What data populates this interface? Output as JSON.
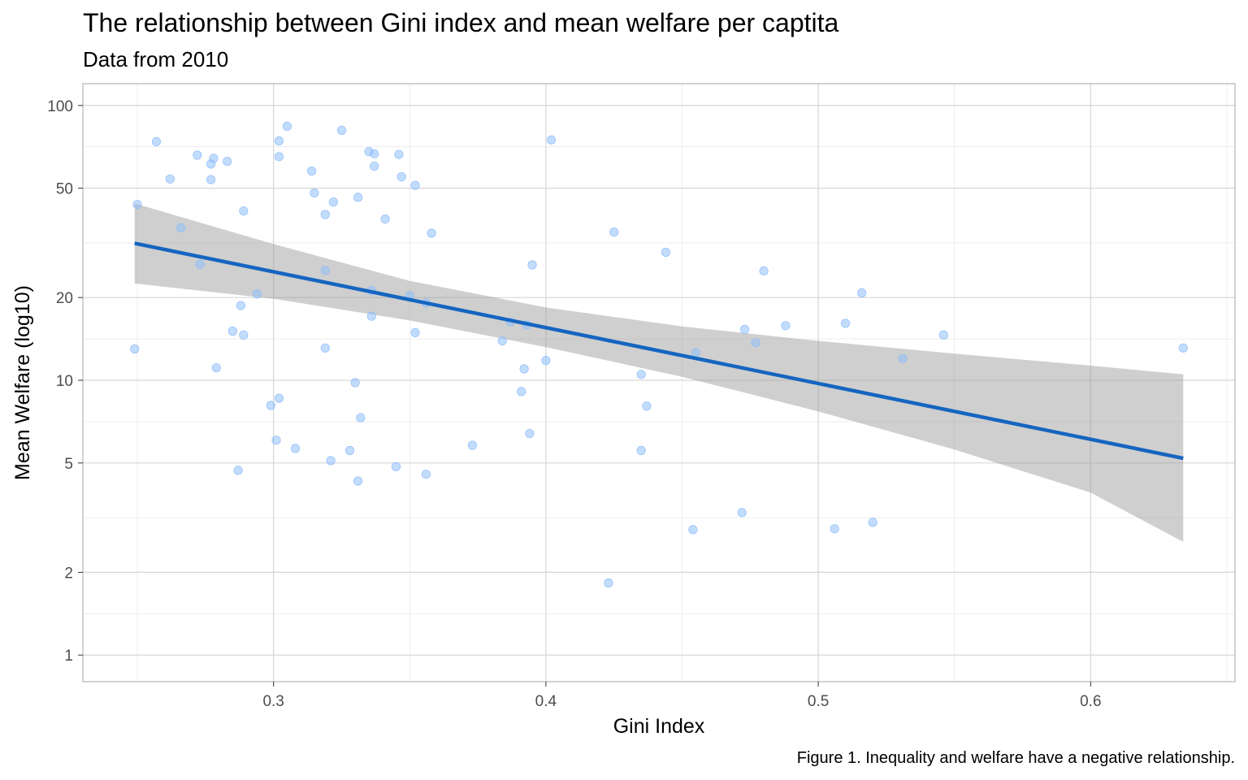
{
  "chart_data": {
    "type": "scatter",
    "title": "The relationship between Gini index and mean welfare per captita",
    "subtitle": "Data from 2010",
    "caption": "Figure 1. Inequality and welfare have a negative relationship.",
    "xlabel": "Gini Index",
    "ylabel": "Mean Welfare (log10)",
    "y_scale": "log10",
    "xlim": [
      0.23,
      0.653
    ],
    "ylim": [
      0.8,
      120
    ],
    "x_ticks": [
      0.3,
      0.4,
      0.5,
      0.6
    ],
    "x_tick_labels": [
      "0.3",
      "0.4",
      "0.5",
      "0.6"
    ],
    "y_ticks": [
      1,
      2,
      5,
      10,
      20,
      50,
      100
    ],
    "y_tick_labels": [
      "1",
      "2",
      "5",
      "10",
      "20",
      "50",
      "100"
    ],
    "colors": {
      "points": "#90bff9",
      "fit_line": "#1565c0",
      "ribbon": "#999999",
      "grid": "#d6d6d6",
      "panel_border": "#b3b3b3"
    },
    "points": [
      {
        "x": 0.249,
        "y": 13.0
      },
      {
        "x": 0.25,
        "y": 43.6
      },
      {
        "x": 0.257,
        "y": 73.8
      },
      {
        "x": 0.262,
        "y": 54.0
      },
      {
        "x": 0.266,
        "y": 35.9
      },
      {
        "x": 0.272,
        "y": 65.9
      },
      {
        "x": 0.273,
        "y": 26.4
      },
      {
        "x": 0.277,
        "y": 61.2
      },
      {
        "x": 0.277,
        "y": 53.7
      },
      {
        "x": 0.278,
        "y": 64.2
      },
      {
        "x": 0.279,
        "y": 11.1
      },
      {
        "x": 0.283,
        "y": 62.6
      },
      {
        "x": 0.285,
        "y": 15.1
      },
      {
        "x": 0.287,
        "y": 4.7
      },
      {
        "x": 0.288,
        "y": 18.7
      },
      {
        "x": 0.289,
        "y": 14.6
      },
      {
        "x": 0.289,
        "y": 41.3
      },
      {
        "x": 0.294,
        "y": 20.6
      },
      {
        "x": 0.299,
        "y": 8.1
      },
      {
        "x": 0.301,
        "y": 6.05
      },
      {
        "x": 0.302,
        "y": 8.6
      },
      {
        "x": 0.302,
        "y": 65.1
      },
      {
        "x": 0.302,
        "y": 74.3
      },
      {
        "x": 0.305,
        "y": 84.0
      },
      {
        "x": 0.308,
        "y": 5.65
      },
      {
        "x": 0.314,
        "y": 57.7
      },
      {
        "x": 0.315,
        "y": 48.0
      },
      {
        "x": 0.319,
        "y": 40.1
      },
      {
        "x": 0.319,
        "y": 25.1
      },
      {
        "x": 0.319,
        "y": 13.1
      },
      {
        "x": 0.321,
        "y": 5.1
      },
      {
        "x": 0.322,
        "y": 44.5
      },
      {
        "x": 0.325,
        "y": 81.2
      },
      {
        "x": 0.328,
        "y": 5.55
      },
      {
        "x": 0.33,
        "y": 9.8
      },
      {
        "x": 0.331,
        "y": 4.3
      },
      {
        "x": 0.331,
        "y": 46.3
      },
      {
        "x": 0.332,
        "y": 7.3
      },
      {
        "x": 0.335,
        "y": 67.9
      },
      {
        "x": 0.336,
        "y": 21.2
      },
      {
        "x": 0.336,
        "y": 17.1
      },
      {
        "x": 0.337,
        "y": 66.7
      },
      {
        "x": 0.337,
        "y": 60.1
      },
      {
        "x": 0.341,
        "y": 38.6
      },
      {
        "x": 0.345,
        "y": 4.85
      },
      {
        "x": 0.346,
        "y": 66.3
      },
      {
        "x": 0.347,
        "y": 55.0
      },
      {
        "x": 0.35,
        "y": 20.3
      },
      {
        "x": 0.352,
        "y": 51.2
      },
      {
        "x": 0.352,
        "y": 14.9
      },
      {
        "x": 0.356,
        "y": 19.1
      },
      {
        "x": 0.356,
        "y": 4.55
      },
      {
        "x": 0.358,
        "y": 34.3
      },
      {
        "x": 0.373,
        "y": 5.8
      },
      {
        "x": 0.384,
        "y": 13.9
      },
      {
        "x": 0.387,
        "y": 16.3
      },
      {
        "x": 0.391,
        "y": 9.1
      },
      {
        "x": 0.392,
        "y": 11.0
      },
      {
        "x": 0.393,
        "y": 15.9
      },
      {
        "x": 0.394,
        "y": 6.4
      },
      {
        "x": 0.395,
        "y": 26.3
      },
      {
        "x": 0.4,
        "y": 11.8
      },
      {
        "x": 0.402,
        "y": 74.9
      },
      {
        "x": 0.423,
        "y": 1.83
      },
      {
        "x": 0.425,
        "y": 34.6
      },
      {
        "x": 0.435,
        "y": 10.5
      },
      {
        "x": 0.435,
        "y": 5.55
      },
      {
        "x": 0.437,
        "y": 8.05
      },
      {
        "x": 0.444,
        "y": 29.2
      },
      {
        "x": 0.454,
        "y": 2.86
      },
      {
        "x": 0.455,
        "y": 12.6
      },
      {
        "x": 0.472,
        "y": 3.3
      },
      {
        "x": 0.473,
        "y": 15.3
      },
      {
        "x": 0.477,
        "y": 13.7
      },
      {
        "x": 0.48,
        "y": 25.0
      },
      {
        "x": 0.488,
        "y": 15.8
      },
      {
        "x": 0.506,
        "y": 2.88
      },
      {
        "x": 0.51,
        "y": 16.1
      },
      {
        "x": 0.516,
        "y": 20.8
      },
      {
        "x": 0.52,
        "y": 3.04
      },
      {
        "x": 0.531,
        "y": 12.0
      },
      {
        "x": 0.546,
        "y": 14.6
      },
      {
        "x": 0.634,
        "y": 13.1
      }
    ],
    "fit_line": [
      {
        "x": 0.249,
        "y": 31.5
      },
      {
        "x": 0.634,
        "y": 5.2
      }
    ],
    "confidence_band": [
      {
        "x": 0.249,
        "lower": 22.5,
        "upper": 44.0
      },
      {
        "x": 0.3,
        "lower": 19.8,
        "upper": 31.3
      },
      {
        "x": 0.35,
        "lower": 16.5,
        "upper": 23.0
      },
      {
        "x": 0.4,
        "lower": 13.2,
        "upper": 18.4
      },
      {
        "x": 0.45,
        "lower": 10.3,
        "upper": 15.7
      },
      {
        "x": 0.5,
        "lower": 7.7,
        "upper": 13.9
      },
      {
        "x": 0.55,
        "lower": 5.6,
        "upper": 12.5
      },
      {
        "x": 0.6,
        "lower": 3.9,
        "upper": 11.3
      },
      {
        "x": 0.634,
        "lower": 2.58,
        "upper": 10.5
      }
    ]
  }
}
